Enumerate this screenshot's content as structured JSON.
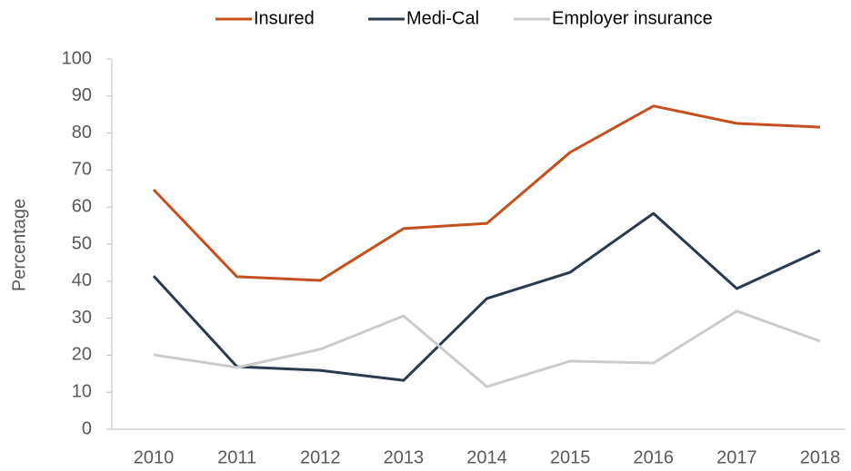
{
  "chart_data": {
    "type": "line",
    "y_label": "Percentage",
    "categories": [
      "2010",
      "2011",
      "2012",
      "2013",
      "2014",
      "2015",
      "2016",
      "2017",
      "2018"
    ],
    "series": [
      {
        "name": "Insured",
        "color": "#c4501e",
        "values": [
          64.7,
          41.2,
          40.2,
          54.2,
          55.6,
          74.8,
          87.3,
          82.6,
          81.6
        ]
      },
      {
        "name": "Medi-Cal",
        "color": "#2b3a4f",
        "values": [
          41.4,
          16.9,
          15.9,
          13.2,
          35.3,
          42.4,
          58.3,
          38.0,
          48.3
        ]
      },
      {
        "name": "Employer insurance",
        "color": "#cccccc",
        "values": [
          20.1,
          16.7,
          21.6,
          30.6,
          11.5,
          18.4,
          17.9,
          31.9,
          23.8
        ]
      }
    ],
    "ylim": [
      0,
      100
    ],
    "yticks": [
      0,
      10,
      20,
      30,
      40,
      50,
      60,
      70,
      80,
      90,
      100
    ],
    "grid": false,
    "legend": "top"
  }
}
